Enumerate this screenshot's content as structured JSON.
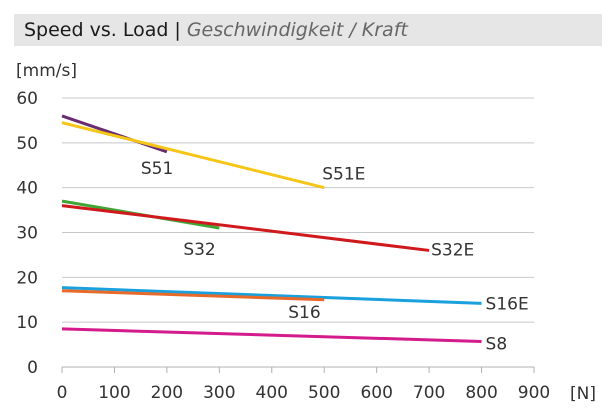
{
  "title": {
    "main": "Speed vs. Load",
    "separator": "|",
    "subtitle": "Geschwindigkeit / Kraft"
  },
  "chart_data": {
    "type": "line",
    "title": "Speed vs. Load | Geschwindigkeit / Kraft",
    "xlabel": "[N]",
    "ylabel": "[mm/s]",
    "xlim": [
      0,
      900
    ],
    "ylim": [
      0,
      60
    ],
    "x_ticks": [
      0,
      100,
      200,
      300,
      400,
      500,
      600,
      700,
      800,
      900
    ],
    "y_ticks": [
      0,
      10,
      20,
      30,
      40,
      50,
      60
    ],
    "grid": "horizontal",
    "series": [
      {
        "name": "S51",
        "color": "#6a2c70",
        "x": [
          0,
          200
        ],
        "y": [
          56,
          48
        ]
      },
      {
        "name": "S51E",
        "color": "#f5c518",
        "x": [
          0,
          500
        ],
        "y": [
          54.5,
          40
        ]
      },
      {
        "name": "S32",
        "color": "#3fa535",
        "x": [
          0,
          300
        ],
        "y": [
          37,
          31
        ]
      },
      {
        "name": "S32E",
        "color": "#d0191d",
        "x": [
          0,
          700
        ],
        "y": [
          36,
          26
        ]
      },
      {
        "name": "S16E",
        "color": "#1aa0dc",
        "x": [
          0,
          800
        ],
        "y": [
          17.7,
          14.2
        ]
      },
      {
        "name": "S16",
        "color": "#e86a2a",
        "x": [
          0,
          500
        ],
        "y": [
          17,
          15
        ]
      },
      {
        "name": "S8",
        "color": "#d41b8c",
        "x": [
          0,
          800
        ],
        "y": [
          8.5,
          5.7
        ]
      }
    ]
  }
}
